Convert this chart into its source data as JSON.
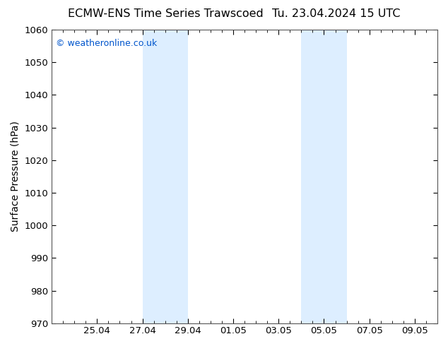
{
  "title_left": "ECMW-ENS Time Series Trawscoed",
  "title_right": "Tu. 23.04.2024 15 UTC",
  "ylabel": "Surface Pressure (hPa)",
  "ylim": [
    970,
    1060
  ],
  "yticks": [
    970,
    980,
    990,
    1000,
    1010,
    1020,
    1030,
    1040,
    1050,
    1060
  ],
  "x_start": "2024-04-23",
  "x_end": "2024-05-10",
  "xtick_labels": [
    "25.04",
    "27.04",
    "29.04",
    "01.05",
    "03.05",
    "05.05",
    "07.05",
    "09.05"
  ],
  "xtick_dates": [
    "2024-04-25",
    "2024-04-27",
    "2024-04-29",
    "2024-05-01",
    "2024-05-03",
    "2024-05-05",
    "2024-05-07",
    "2024-05-09"
  ],
  "shaded_bands": [
    {
      "x0": "2024-04-27",
      "x1": "2024-04-29"
    },
    {
      "x0": "2024-05-04",
      "x1": "2024-05-06"
    }
  ],
  "shaded_color": "#ddeeff",
  "background_color": "#ffffff",
  "plot_bg_color": "#ffffff",
  "border_color": "#555555",
  "title_fontsize": 11.5,
  "axis_label_fontsize": 10,
  "tick_fontsize": 9.5,
  "watermark_text": "© weatheronline.co.uk",
  "watermark_color": "#0055cc",
  "watermark_fontsize": 9
}
